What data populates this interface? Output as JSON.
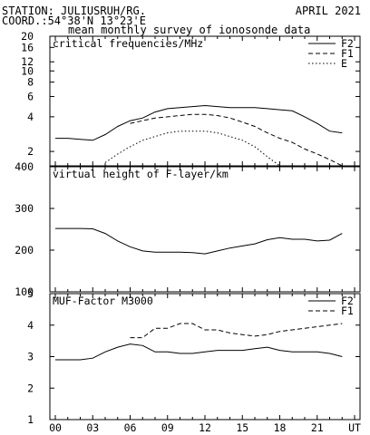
{
  "header": {
    "station": "STATION: JULIUSRUH/RG.",
    "date": "APRIL 2021",
    "coord": "COORD.:54°38'N 13°23'E",
    "subtitle": "mean monthly survey of ionosonde data"
  },
  "chart_data": [
    {
      "type": "line",
      "title": "critical frequencies/MHz",
      "yscale": "log",
      "ylim": [
        1.5,
        20
      ],
      "yticks": [
        "20",
        "16",
        "12",
        "10",
        "8",
        "6",
        "4",
        "2"
      ],
      "ytick_values": [
        20,
        16,
        12,
        10,
        8,
        6,
        4,
        2
      ],
      "xlim": [
        0,
        24
      ],
      "grid": false,
      "legend": "top-right",
      "series": [
        {
          "name": "F2",
          "style": "solid",
          "x": [
            0,
            1,
            2,
            3,
            4,
            5,
            6,
            7,
            8,
            9,
            10,
            11,
            12,
            13,
            14,
            15,
            16,
            17,
            18,
            19,
            20,
            21,
            22,
            23
          ],
          "y": [
            2.6,
            2.6,
            2.55,
            2.5,
            2.8,
            3.3,
            3.7,
            3.9,
            4.4,
            4.7,
            4.8,
            4.9,
            5.0,
            4.9,
            4.8,
            4.8,
            4.8,
            4.7,
            4.6,
            4.5,
            4.0,
            3.5,
            3.0,
            2.9
          ]
        },
        {
          "name": "F1",
          "style": "dashed",
          "x": [
            6,
            7,
            8,
            9,
            10,
            11,
            12,
            13,
            14,
            15,
            16,
            17,
            18,
            19,
            20,
            21,
            22,
            23
          ],
          "y": [
            3.5,
            3.7,
            3.9,
            4.0,
            4.1,
            4.2,
            4.2,
            4.1,
            3.9,
            3.6,
            3.3,
            2.9,
            2.6,
            2.4,
            2.1,
            1.9,
            1.7,
            1.5
          ]
        },
        {
          "name": "E",
          "style": "dotted",
          "x": [
            4,
            5,
            6,
            7,
            8,
            9,
            10,
            11,
            12,
            13,
            14,
            15,
            16,
            17,
            18
          ],
          "y": [
            1.6,
            1.9,
            2.2,
            2.5,
            2.7,
            2.9,
            3.0,
            3.0,
            3.0,
            2.9,
            2.7,
            2.5,
            2.2,
            1.8,
            1.5
          ]
        }
      ]
    },
    {
      "type": "line",
      "title": "virtual height of F-layer/km",
      "ylim": [
        100,
        400
      ],
      "yticks": [
        "400",
        "300",
        "200",
        "100"
      ],
      "ytick_values": [
        400,
        300,
        200,
        100
      ],
      "xlim": [
        0,
        24
      ],
      "grid": false,
      "series": [
        {
          "style": "solid",
          "x": [
            0,
            1,
            2,
            3,
            4,
            5,
            6,
            7,
            8,
            9,
            10,
            11,
            12,
            13,
            14,
            15,
            16,
            17,
            18,
            19,
            20,
            21,
            22,
            23
          ],
          "y": [
            252,
            252,
            252,
            251,
            240,
            222,
            208,
            198,
            195,
            195,
            195,
            194,
            191,
            198,
            205,
            210,
            215,
            225,
            230,
            226,
            226,
            222,
            224,
            240
          ]
        }
      ]
    },
    {
      "type": "line",
      "title": "MUF-Factor M3000",
      "ylim": [
        1,
        5
      ],
      "yticks": [
        "5",
        "4",
        "3",
        "2",
        "1"
      ],
      "ytick_values": [
        5,
        4,
        3,
        2,
        1
      ],
      "xlim": [
        0,
        24
      ],
      "xticks": [
        "00",
        "03",
        "06",
        "09",
        "12",
        "15",
        "18",
        "21",
        "UT"
      ],
      "xtick_values": [
        0,
        3,
        6,
        9,
        12,
        15,
        18,
        21,
        24
      ],
      "grid": false,
      "legend": "top-right",
      "series": [
        {
          "name": "F2",
          "style": "solid",
          "x": [
            0,
            1,
            2,
            3,
            4,
            5,
            6,
            7,
            8,
            9,
            10,
            11,
            12,
            13,
            14,
            15,
            16,
            17,
            18,
            19,
            20,
            21,
            22,
            23
          ],
          "y": [
            2.9,
            2.9,
            2.9,
            2.95,
            3.15,
            3.3,
            3.4,
            3.35,
            3.15,
            3.15,
            3.1,
            3.1,
            3.15,
            3.2,
            3.2,
            3.2,
            3.25,
            3.3,
            3.2,
            3.15,
            3.15,
            3.15,
            3.1,
            3.0
          ]
        },
        {
          "name": "F1",
          "style": "dashed",
          "x": [
            6,
            7,
            8,
            9,
            10,
            11,
            12,
            13,
            14,
            15,
            16,
            17,
            18,
            19,
            20,
            21,
            22,
            23
          ],
          "y": [
            3.6,
            3.6,
            3.9,
            3.9,
            4.05,
            4.05,
            3.85,
            3.85,
            3.75,
            3.7,
            3.65,
            3.7,
            3.8,
            3.85,
            3.9,
            3.95,
            4.0,
            4.05
          ]
        }
      ]
    }
  ]
}
